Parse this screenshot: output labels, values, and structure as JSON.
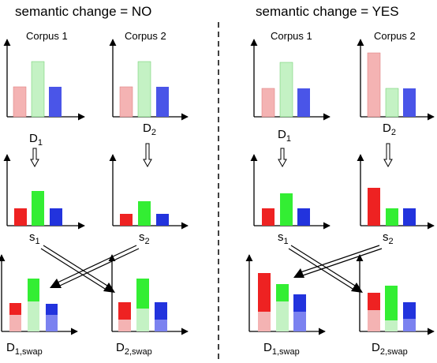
{
  "left_panel": {
    "header": "semantic change = NO",
    "corpus1": "Corpus 1",
    "corpus2": "Corpus 2",
    "d1_main": "D",
    "d1_sub": "1",
    "d2_main": "D",
    "d2_sub": "2",
    "s1_main": "s",
    "s1_sub": "1",
    "s2_main": "s",
    "s2_sub": "2",
    "d1swap_main": "D",
    "d1swap_sub": "1,swap",
    "d2swap_main": "D",
    "d2swap_sub": "2,swap"
  },
  "right_panel": {
    "header": "semantic change = YES",
    "corpus1": "Corpus 1",
    "corpus2": "Corpus 2",
    "d1_main": "D",
    "d1_sub": "1",
    "d2_main": "D",
    "d2_sub": "2",
    "s1_main": "s",
    "s1_sub": "1",
    "s2_main": "s",
    "s2_sub": "2",
    "d1swap_main": "D",
    "d1swap_sub": "1,swap",
    "d2swap_main": "D",
    "d2swap_sub": "2,swap"
  },
  "colors": {
    "red_light": "#f4b3b3",
    "green_light": "#c4f2c4",
    "blue": "#4a55e8",
    "red": "#ee2222",
    "green": "#33ee33",
    "blue_dark": "#2233dd",
    "blue_light": "#7b82f0"
  }
}
